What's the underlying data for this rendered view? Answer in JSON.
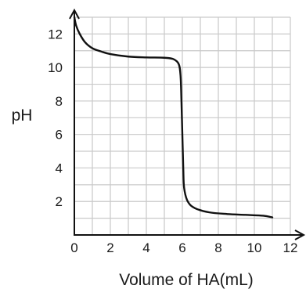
{
  "chart_data": {
    "type": "line",
    "xlabel": "Volume of HA(mL)",
    "ylabel": "pH",
    "xlim": [
      0,
      12
    ],
    "ylim": [
      0,
      13
    ],
    "xticks": [
      "0",
      "2",
      "4",
      "6",
      "8",
      "10",
      "12"
    ],
    "yticks": [
      "2",
      "4",
      "6",
      "8",
      "10",
      "12"
    ],
    "grid": true,
    "grid_step": 1,
    "series": [
      {
        "points": [
          [
            0.0,
            13.0
          ],
          [
            0.1,
            12.5
          ],
          [
            0.3,
            12.0
          ],
          [
            0.6,
            11.5
          ],
          [
            1.0,
            11.15
          ],
          [
            1.5,
            10.95
          ],
          [
            2.0,
            10.8
          ],
          [
            3.0,
            10.65
          ],
          [
            4.0,
            10.6
          ],
          [
            5.0,
            10.58
          ],
          [
            5.5,
            10.5
          ],
          [
            5.8,
            10.2
          ],
          [
            5.9,
            9.5
          ],
          [
            5.95,
            8.0
          ],
          [
            6.0,
            6.0
          ],
          [
            6.05,
            4.0
          ],
          [
            6.1,
            2.8
          ],
          [
            6.3,
            2.0
          ],
          [
            6.7,
            1.6
          ],
          [
            7.5,
            1.35
          ],
          [
            8.5,
            1.25
          ],
          [
            9.5,
            1.2
          ],
          [
            10.5,
            1.15
          ],
          [
            11.0,
            1.05
          ]
        ],
        "color": "#111111"
      }
    ]
  }
}
